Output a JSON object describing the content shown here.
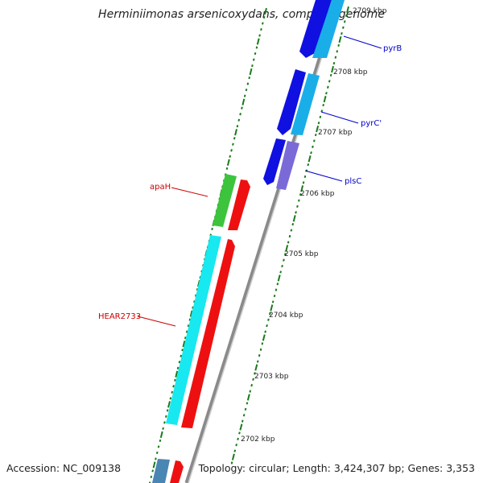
{
  "title": "Herminiimonas arsenicoxydans, complete genome",
  "footer": {
    "accession": "Accession: NC_009138",
    "topology": "Topology: circular; Length: 3,424,307 bp; Genes: 3,353"
  },
  "scale_labels": [
    "2709 kbp",
    "2708 kbp",
    "2707 kbp",
    "2706 kbp",
    "2705 kbp",
    "2704 kbp",
    "2703 kbp",
    "2702 kbp"
  ],
  "gene_labels": [
    {
      "text": "pyrB",
      "color": "#0000cc"
    },
    {
      "text": "pyrC'",
      "color": "#0000cc"
    },
    {
      "text": "plsC",
      "color": "#0000cc"
    },
    {
      "text": "apaH",
      "color": "#cc0000"
    },
    {
      "text": "HEAR2733",
      "color": "#cc0000"
    }
  ],
  "colors": {
    "backbone": "#8a8a8a",
    "tick": "#1a7a1a",
    "blue": "#1010e0",
    "light_blue": "#1aaee8",
    "purple": "#7a6ad8",
    "green": "#3cc43c",
    "red": "#ee1010",
    "cyan": "#18e8f0",
    "steel": "#4a86b4"
  }
}
